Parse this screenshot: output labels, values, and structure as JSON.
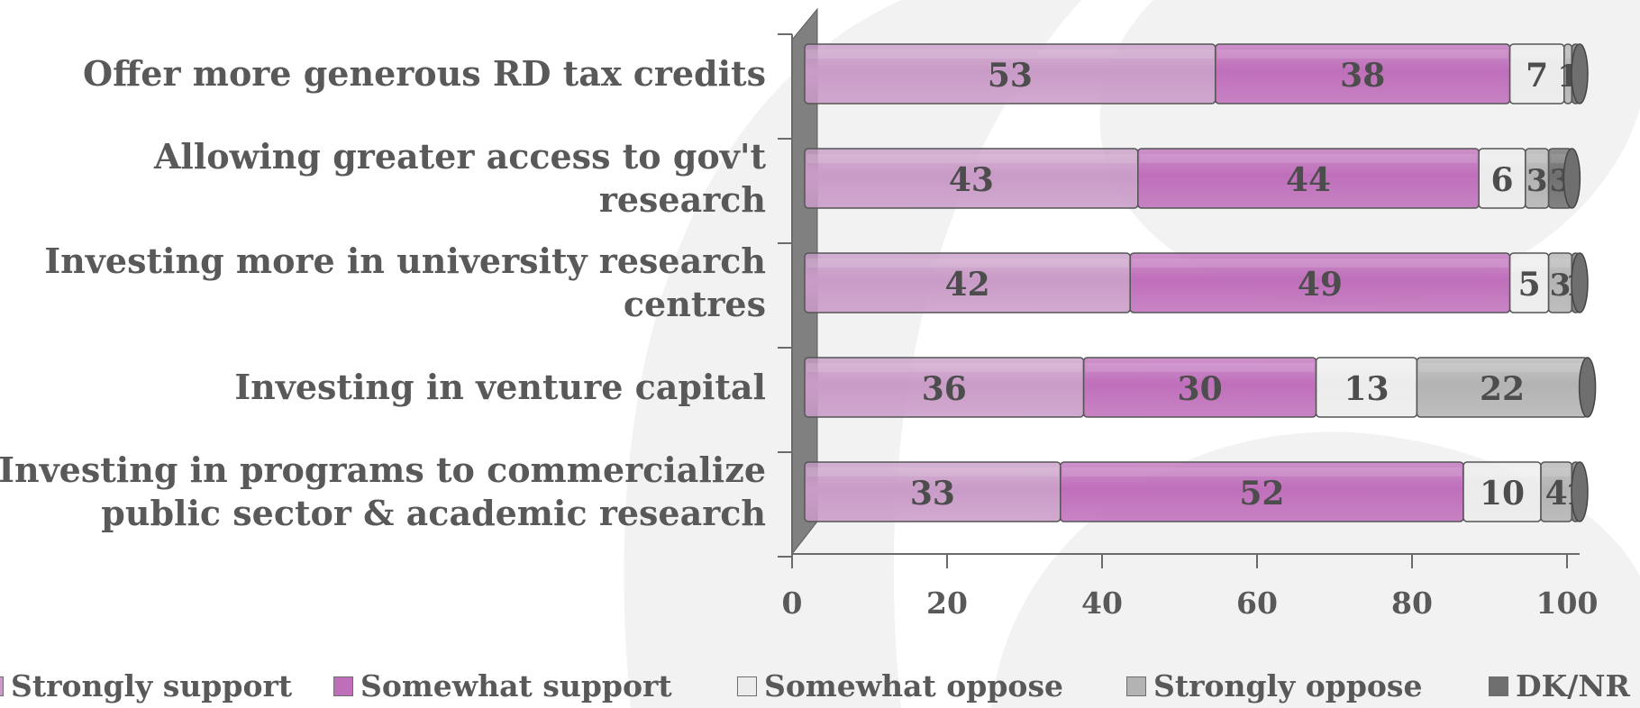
{
  "chart_data": {
    "type": "bar",
    "orientation": "horizontal",
    "stacked": true,
    "categories": [
      "Offer more generous RD tax credits",
      "Allowing greater access to gov't research",
      "Investing more in university research centres",
      "Investing in venture capital",
      "Investing in programs to commercialize public sector & academic research"
    ],
    "series": [
      {
        "name": "Strongly support",
        "color": "#c99bc7",
        "values": [
          53,
          43,
          42,
          36,
          33
        ]
      },
      {
        "name": "Somewhat support",
        "color": "#bf6fba",
        "values": [
          38,
          44,
          49,
          30,
          52
        ]
      },
      {
        "name": "Somewhat oppose",
        "color": "#ececec",
        "values": [
          7,
          6,
          5,
          13,
          10
        ]
      },
      {
        "name": "Strongly oppose",
        "color": "#b3b3b3",
        "values": [
          1,
          3,
          3,
          22,
          4
        ]
      },
      {
        "name": "DK/NR",
        "color": "#6f6f6f",
        "values": [
          1,
          3,
          1,
          0,
          1
        ]
      }
    ],
    "data_labels": [
      [
        "53",
        "38",
        "7",
        "1",
        ""
      ],
      [
        "43",
        "44",
        "6",
        "3",
        "3"
      ],
      [
        "42",
        "49",
        "5",
        "3",
        "1"
      ],
      [
        "36",
        "30",
        "13",
        "22",
        ""
      ],
      [
        "33",
        "52",
        "10",
        "4",
        "1"
      ]
    ],
    "xticks": [
      "0",
      "20",
      "40",
      "60",
      "80",
      "100"
    ],
    "xlim": [
      0,
      100
    ],
    "legend_position": "bottom",
    "grid": false
  }
}
